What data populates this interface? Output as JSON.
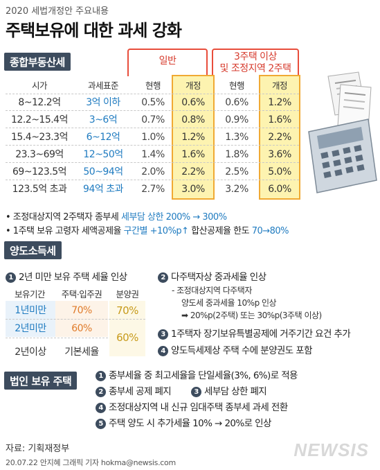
{
  "header": {
    "supertitle": "2020 세법개정안 주요내용",
    "title": "주택보유에 대한 과세 강화"
  },
  "section1": {
    "label": "종합부동산세",
    "group_general": "일반",
    "group_multi_line1": "3주택 이상",
    "group_multi_line2": "및 조정지역 2주택",
    "columns": [
      "시가",
      "과세표준",
      "현행",
      "개정",
      "현행",
      "개정"
    ],
    "rows": [
      [
        "8~12.2억",
        "3억 이하",
        "0.5%",
        "0.6%",
        "0.6%",
        "1.2%"
      ],
      [
        "12.2~15.4억",
        "3~6억",
        "0.7%",
        "0.8%",
        "0.9%",
        "1.6%"
      ],
      [
        "15.4~23.3억",
        "6~12억",
        "1.0%",
        "1.2%",
        "1.3%",
        "2.2%"
      ],
      [
        "23.3~69억",
        "12~50억",
        "1.4%",
        "1.6%",
        "1.8%",
        "3.6%"
      ],
      [
        "69~123.5억",
        "50~94억",
        "2.0%",
        "2.2%",
        "2.5%",
        "5.0%"
      ],
      [
        "123.5억 초과",
        "94억 초과",
        "2.7%",
        "3.0%",
        "3.2%",
        "6.0%"
      ]
    ],
    "note1_a": "• 조정대상지역 2주택자 종부세 ",
    "note1_b": "세부담 상한 200% → 300%",
    "note2_a": "• 1주택 보유 고령자 세액공제율 ",
    "note2_b": "구간별 +10%p↑",
    "note2_c": " 합산공제율 한도 ",
    "note2_d": "70→80%"
  },
  "section2": {
    "label": "양도소득세",
    "item1": "2년 미만 보유 주택 세율 인상",
    "item2": "다주택자상 중과세율 인상",
    "item2_sub1": "- 조정대상지역 다주택자",
    "item2_sub2": "양도세 중과세율 10%p 인상",
    "item2_sub3": "➡ 20%p(2주택) 또는 30%p(3주택 이상)",
    "item3": "1주택자 장기보유특별공제에 거주기간 요건 추가",
    "item4": "양도득세제상 주택 수에 분양권도 포함",
    "table_head": [
      "보유기간",
      "주택·입주권",
      "분양권"
    ],
    "table_rows": [
      [
        "1년미만",
        "70%",
        "70%"
      ],
      [
        "2년미만",
        "60%",
        "60%"
      ],
      [
        "2년이상",
        "기본세율",
        ""
      ]
    ]
  },
  "section3": {
    "label": "법인 보유 주택",
    "item1": "종부세율 중 최고세율을 단일세율(3%, 6%)로 적용",
    "item2": "종부세 공제 폐지",
    "item3": "세부담 상한 폐지",
    "item4": "조정대상지역 내 신규 임대주택 종부세 과세 전환",
    "item5": "주택 양도 시 추가세율 10% → 20%로 인상"
  },
  "footer": {
    "source": "자료: 기획재정부",
    "credit": "20.07.22 안지혜 그래픽 기자 hokma@newsis.com",
    "logo": "NEWSIS"
  },
  "colors": {
    "section_bg": "#3d4c5e",
    "accent_blue": "#1f7bc0",
    "accent_red": "#d63a2c",
    "highlight_yellow": "#fdf3b0",
    "highlight_border": "#f0a933"
  },
  "icons": [
    "calculator-icon",
    "receipt-icon"
  ]
}
